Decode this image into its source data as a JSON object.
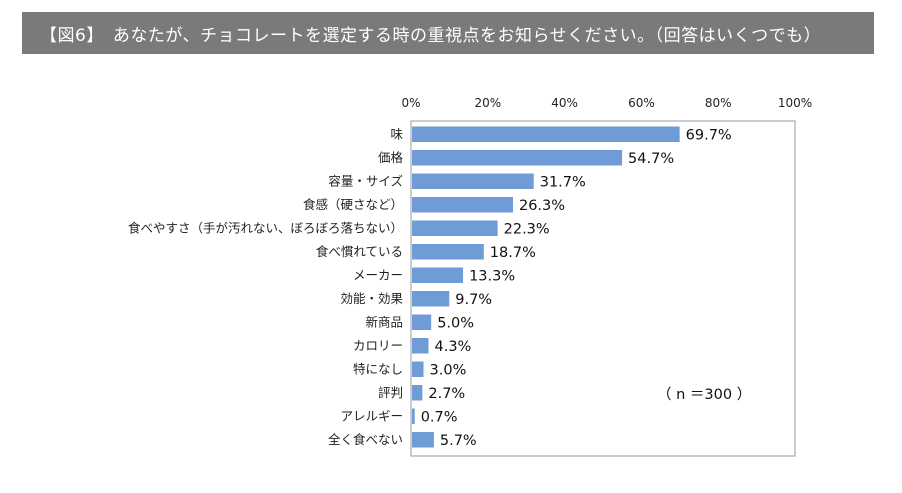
{
  "header": {
    "title": "【図6】　あなたが、チョコレートを選定する時の重視点をお知らせください。（回答はいくつでも）"
  },
  "note": "（ n ＝300 ）",
  "colors": {
    "bar": "#6f9bd6",
    "header_bg": "#7a7a7a",
    "frame": "#9a9a9a"
  },
  "chart_data": {
    "type": "bar",
    "orientation": "horizontal",
    "title": "",
    "xlabel": "",
    "ylabel": "",
    "xlim": [
      0,
      100
    ],
    "ticks": [
      0,
      20,
      40,
      60,
      80,
      100
    ],
    "tick_labels": [
      "0%",
      "20%",
      "40%",
      "60%",
      "80%",
      "100%"
    ],
    "grid": false,
    "categories": [
      "味",
      "価格",
      "容量・サイズ",
      "食感（硬さなど）",
      "食べやすさ（手が汚れない、ぼろぼろ落ちない）",
      "食べ慣れている",
      "メーカー",
      "効能・効果",
      "新商品",
      "カロリー",
      "特になし",
      "評判",
      "アレルギー",
      "全く食べない"
    ],
    "values": [
      69.7,
      54.7,
      31.7,
      26.3,
      22.3,
      18.7,
      13.3,
      9.7,
      5.0,
      4.3,
      3.0,
      2.7,
      0.7,
      5.7
    ],
    "value_labels": [
      "69.7%",
      "54.7%",
      "31.7%",
      "26.3%",
      "22.3%",
      "18.7%",
      "13.3%",
      "9.7%",
      "5.0%",
      "4.3%",
      "3.0%",
      "2.7%",
      "0.7%",
      "5.7%"
    ]
  }
}
